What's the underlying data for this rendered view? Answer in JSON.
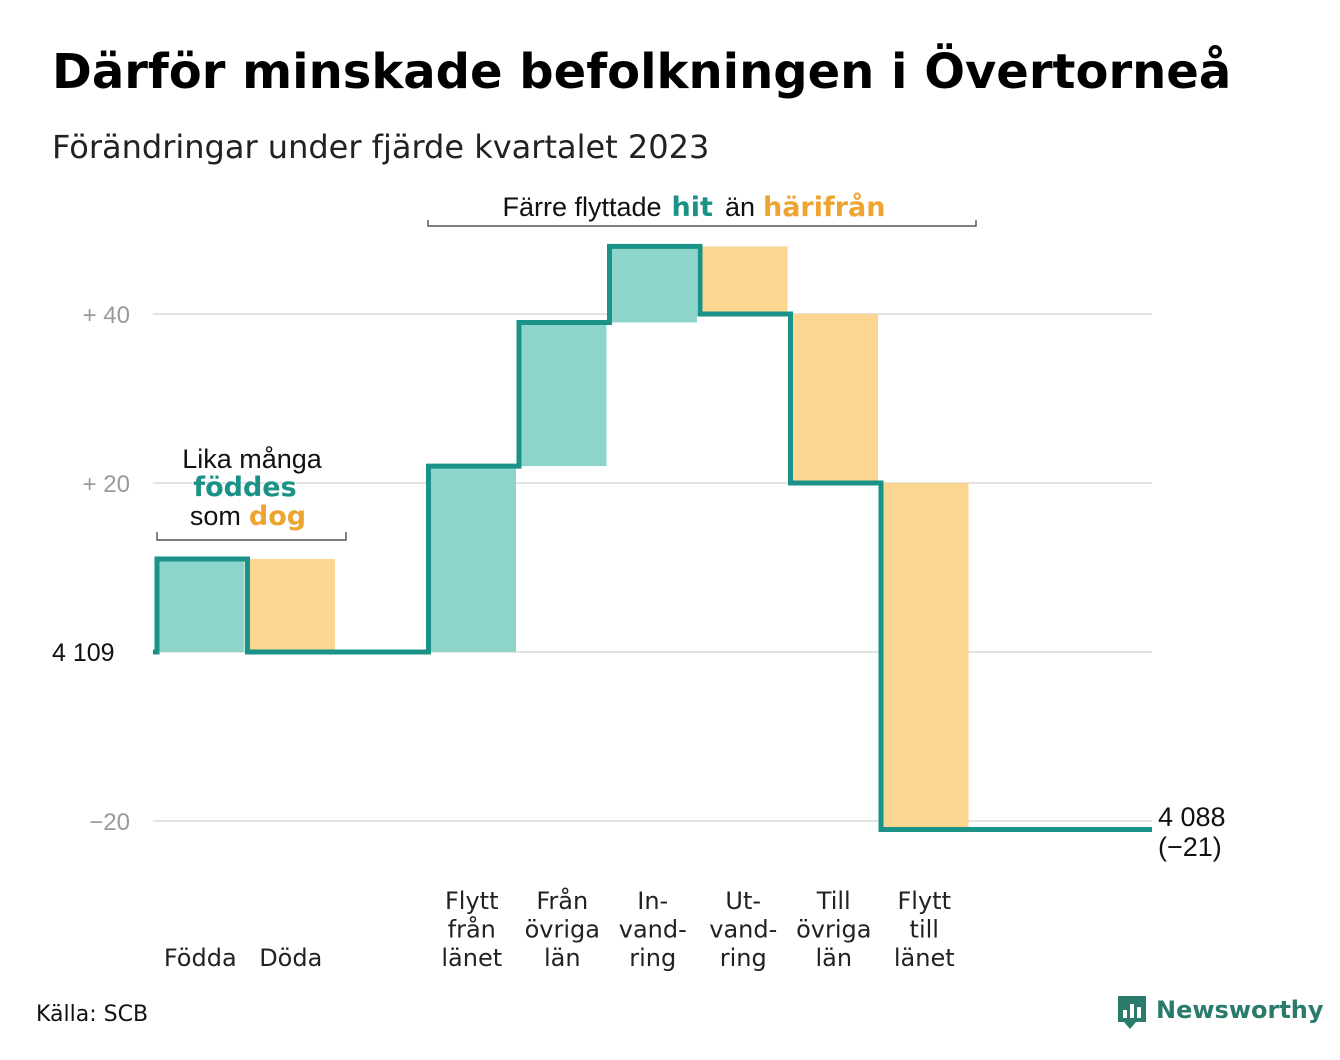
{
  "title": "Därför minskade befolkningen i Övertorneå",
  "subtitle": "Förändringar under fjärde kvartalet 2023",
  "source": "Källa: SCB",
  "logo": {
    "icon": "newsworthy-chart-icon",
    "text": "Newsworthy"
  },
  "colors": {
    "inflow": "#8dd5cb",
    "outflow": "#fbd690",
    "line": "#1a9287",
    "grid": "#e3e3e3",
    "accent_teal": "#1a9287",
    "accent_orange": "#eea430"
  },
  "annotations": {
    "births_deaths": {
      "line1": "Lika många",
      "teal": "föddes",
      "pre": "som",
      "orange": "dog"
    },
    "migration": {
      "pre": "Färre flyttade",
      "teal": "hit",
      "mid": "än",
      "orange": "härifrån"
    }
  },
  "end_label": {
    "value": "4 088",
    "change": "(−21)"
  },
  "chart_data": {
    "type": "waterfall",
    "baseline": 4109,
    "baseline_label": "4  109",
    "ytick_labels": [
      {
        "value": 40,
        "label": "+  40"
      },
      {
        "value": 20,
        "label": "+  20"
      },
      {
        "value": -20,
        "label": "−20"
      }
    ],
    "ylim": [
      -21,
      48
    ],
    "steps": [
      {
        "label": [
          "Födda"
        ],
        "value": 11,
        "type": "in"
      },
      {
        "label": [
          "Döda"
        ],
        "value": -11,
        "type": "out"
      },
      {
        "label": [],
        "value": 0,
        "type": "gap"
      },
      {
        "label": [
          "Flytt",
          "från",
          "länet"
        ],
        "value": 22,
        "type": "in"
      },
      {
        "label": [
          "Från",
          "övriga",
          "län"
        ],
        "value": 17,
        "type": "in"
      },
      {
        "label": [
          "In-",
          "vand-",
          "ring"
        ],
        "value": 9,
        "type": "in"
      },
      {
        "label": [
          "Ut-",
          "vand-",
          "ring"
        ],
        "value": -8,
        "type": "out"
      },
      {
        "label": [
          "Till",
          "övriga",
          "län"
        ],
        "value": -20,
        "type": "out"
      },
      {
        "label": [
          "Flytt",
          "till",
          "länet"
        ],
        "value": -41,
        "type": "out"
      }
    ],
    "end_value": 4088,
    "total_change": -21
  }
}
